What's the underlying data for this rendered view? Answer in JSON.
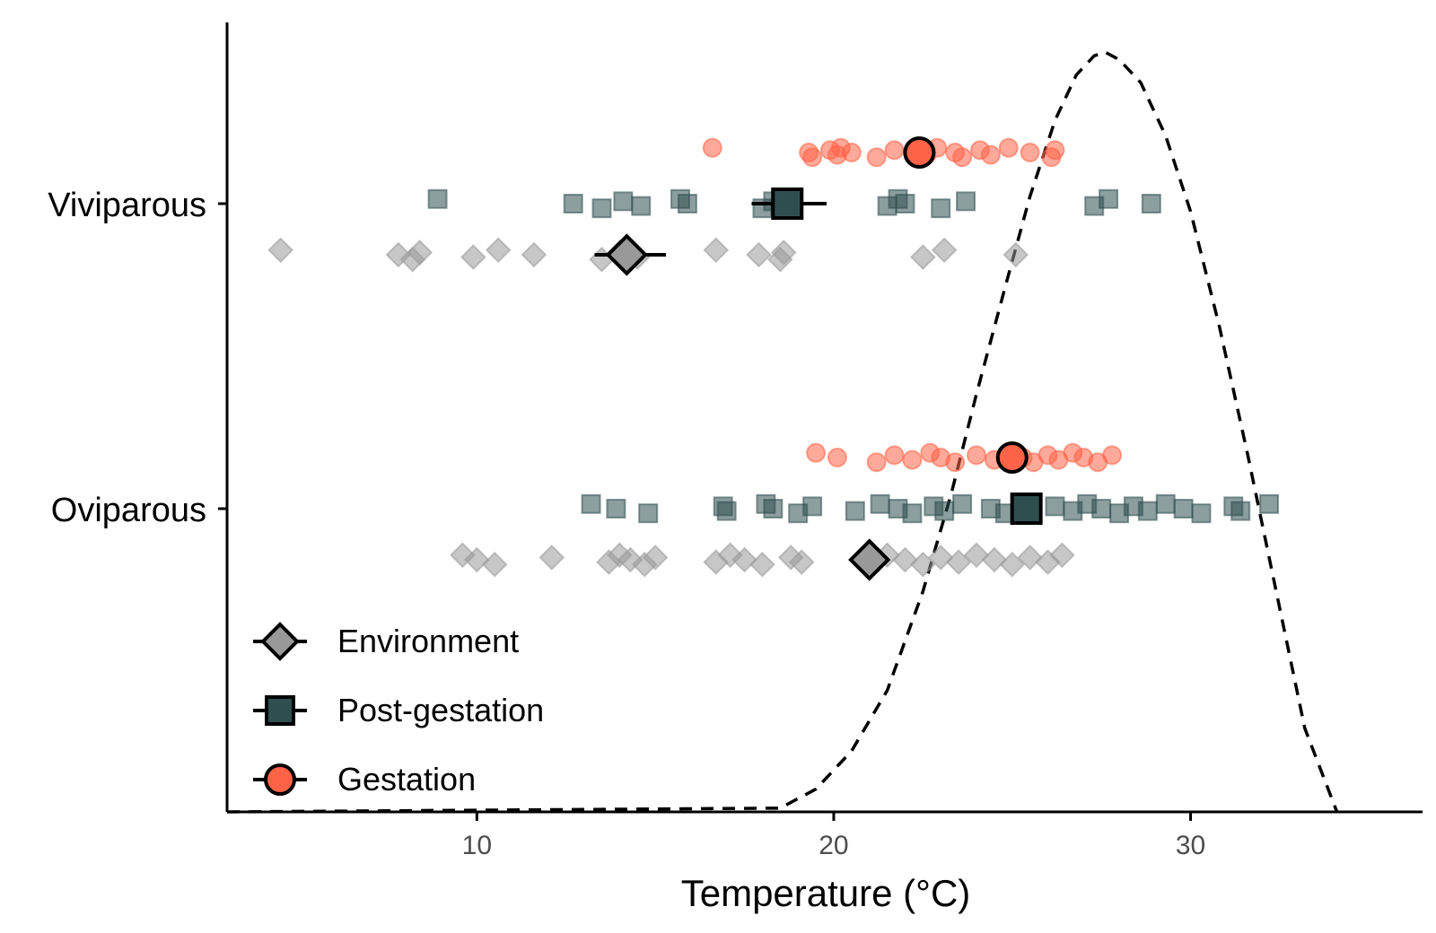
{
  "chart_data": {
    "type": "scatter",
    "xlabel": "Temperature (°C)",
    "xlim": [
      3,
      36.5
    ],
    "x_ticks": [
      "10",
      "20",
      "30"
    ],
    "x_tick_values": [
      10,
      20,
      30
    ],
    "categories": [
      "Viviparous",
      "Oviparous"
    ],
    "colors": {
      "environment": "#999999",
      "post_gestation": "#2f4f4f",
      "gestation": "#ff6347",
      "curve": "#000000"
    },
    "legend": {
      "placement": "bottom-left",
      "entries": [
        {
          "key": "environment",
          "label": "Environment",
          "shape": "diamond"
        },
        {
          "key": "post_gestation",
          "label": "Post-gestation",
          "shape": "square"
        },
        {
          "key": "gestation",
          "label": "Gestation",
          "shape": "circle"
        }
      ]
    },
    "series": [
      {
        "mode": "Viviparous",
        "key": "environment",
        "mean": 14.2,
        "error": [
          13.3,
          15.3
        ],
        "points": [
          4.5,
          7.8,
          8.2,
          8.4,
          9.9,
          10.6,
          11.6,
          13.5,
          14.0,
          14.5,
          16.7,
          17.9,
          18.5,
          18.6,
          22.5,
          23.1,
          25.1
        ]
      },
      {
        "mode": "Viviparous",
        "key": "post_gestation",
        "mean": 18.7,
        "error": [
          17.7,
          19.8
        ],
        "points": [
          8.9,
          12.7,
          13.5,
          14.1,
          14.6,
          15.7,
          15.9,
          18.0,
          18.3,
          21.5,
          21.8,
          22.0,
          23.0,
          23.7,
          27.3,
          27.7,
          28.9
        ]
      },
      {
        "mode": "Viviparous",
        "key": "gestation",
        "mean": 22.4,
        "points": [
          16.6,
          19.3,
          19.4,
          19.9,
          20.1,
          20.2,
          20.5,
          21.2,
          21.7,
          22.6,
          22.9,
          23.4,
          23.6,
          24.1,
          24.4,
          24.9,
          25.5,
          26.1,
          26.2
        ]
      },
      {
        "mode": "Oviparous",
        "key": "environment",
        "mean": 21.0,
        "points": [
          9.6,
          10.0,
          10.5,
          12.1,
          13.7,
          14.0,
          14.3,
          14.7,
          15.0,
          16.7,
          17.1,
          17.5,
          18.0,
          18.8,
          19.1,
          21.5,
          22.0,
          22.5,
          23.0,
          23.5,
          24.0,
          24.5,
          25.0,
          25.5,
          26.0,
          26.4
        ]
      },
      {
        "mode": "Oviparous",
        "key": "post_gestation",
        "mean": 25.4,
        "points": [
          13.2,
          13.9,
          14.8,
          16.9,
          17.0,
          18.1,
          18.3,
          19.0,
          19.4,
          20.6,
          21.3,
          21.8,
          22.2,
          22.8,
          23.1,
          23.6,
          24.4,
          24.8,
          26.2,
          26.7,
          27.1,
          27.5,
          28.0,
          28.4,
          28.8,
          29.3,
          29.8,
          30.3,
          31.2,
          31.4,
          32.2
        ]
      },
      {
        "mode": "Oviparous",
        "key": "gestation",
        "mean": 25.0,
        "points": [
          19.5,
          20.1,
          21.2,
          21.7,
          22.2,
          22.7,
          23.0,
          23.4,
          24.0,
          24.5,
          24.9,
          25.3,
          25.6,
          26.0,
          26.3,
          26.7,
          27.0,
          27.4,
          27.8
        ]
      }
    ],
    "curve": {
      "style": "dashed",
      "shape": "thermal performance curve",
      "peak_x": 27.6,
      "x": [
        3,
        18.5,
        19.5,
        20.5,
        21.5,
        22.5,
        23.3,
        24.0,
        24.8,
        25.5,
        26.2,
        26.8,
        27.3,
        27.6,
        28.0,
        28.6,
        29.3,
        30.0,
        30.8,
        31.6,
        32.4,
        33.2,
        34.1
      ],
      "y": [
        0,
        0.005,
        0.03,
        0.08,
        0.16,
        0.29,
        0.42,
        0.55,
        0.69,
        0.81,
        0.91,
        0.97,
        0.995,
        1.0,
        0.99,
        0.96,
        0.89,
        0.79,
        0.64,
        0.47,
        0.29,
        0.11,
        0
      ]
    }
  }
}
